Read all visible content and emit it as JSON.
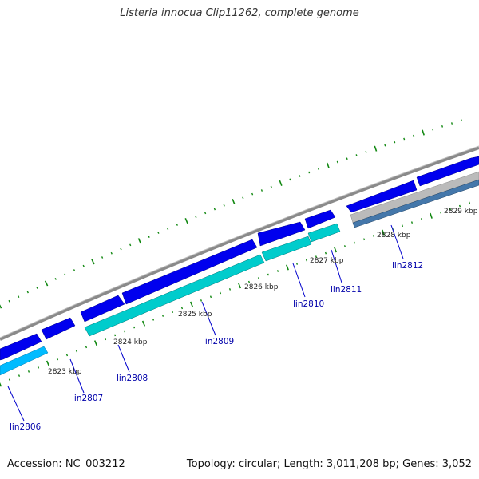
{
  "title": "Listeria innocua Clip11262, complete genome",
  "footer": {
    "accession": "Accession: NC_003212",
    "stats": "Topology: circular; Length: 3,011,208 bp; Genes: 3,052"
  },
  "scale_labels": [
    "2823 kbp",
    "2824 kbp",
    "2825 kbp",
    "2826 kbp",
    "2827 kbp",
    "2828 kbp",
    "2829 kbp"
  ],
  "gene_labels": [
    "lin2806",
    "lin2807",
    "lin2808",
    "lin2809",
    "lin2810",
    "lin2811",
    "lin2812"
  ],
  "colors": {
    "backbone": "#888888",
    "forward_cds": "#0000ee",
    "reverse_cds_light": "#00ccff",
    "reverse_cds_cyan": "#00cccc",
    "reverse_cds_steel": "#4477aa",
    "reverse_cds_grey": "#bbbbbb",
    "ticks": "#118811",
    "label_lines": "#0000cc"
  }
}
